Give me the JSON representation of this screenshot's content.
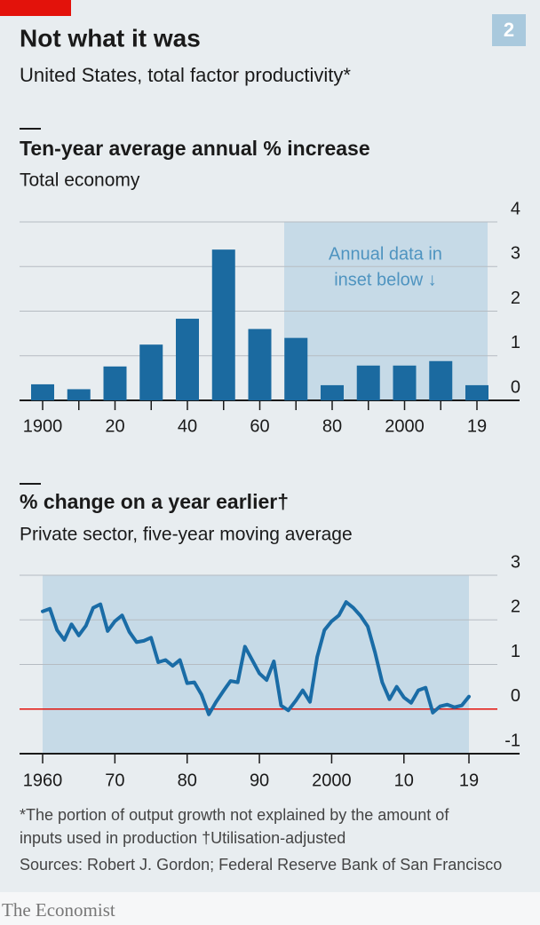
{
  "header": {
    "title": "Not what it was",
    "subtitle": "United States, total factor productivity*",
    "badge": "2"
  },
  "chart_data": [
    {
      "type": "bar",
      "title": "Ten-year average annual % increase",
      "subtitle": "Total economy",
      "categories": [
        "1900",
        null,
        "20",
        null,
        "40",
        null,
        "60",
        null,
        "80",
        null,
        "2000",
        null,
        "19"
      ],
      "values": [
        0.36,
        0.25,
        0.76,
        1.25,
        1.83,
        3.38,
        1.6,
        1.4,
        0.34,
        0.78,
        0.78,
        0.88,
        0.34
      ],
      "color": "#1b6aa0",
      "ylim": [
        0,
        4
      ],
      "yticks": [
        0,
        1,
        2,
        3,
        4
      ],
      "grid": true,
      "annotation": [
        "Annual data in",
        "inset below ↓"
      ]
    },
    {
      "type": "line",
      "title": "% change on a year earlier†",
      "subtitle": "Private sector, five-year moving average",
      "x": [
        1960,
        1961,
        1962,
        1963,
        1964,
        1965,
        1966,
        1967,
        1968,
        1969,
        1970,
        1971,
        1972,
        1973,
        1974,
        1975,
        1976,
        1977,
        1978,
        1979,
        1980,
        1981,
        1982,
        1983,
        1984,
        1985,
        1986,
        1987,
        1988,
        1989,
        1990,
        1991,
        1992,
        1993,
        1994,
        1995,
        1996,
        1997,
        1998,
        1999,
        2000,
        2001,
        2002,
        2003,
        2004,
        2005,
        2006,
        2007,
        2008,
        2009,
        2010,
        2011,
        2012,
        2013,
        2014,
        2015,
        2016,
        2017,
        2018,
        2019
      ],
      "values": [
        2.19,
        2.25,
        1.77,
        1.55,
        1.9,
        1.65,
        1.87,
        2.27,
        2.35,
        1.75,
        1.97,
        2.1,
        1.73,
        1.5,
        1.53,
        1.6,
        1.05,
        1.1,
        0.97,
        1.1,
        0.58,
        0.6,
        0.32,
        -0.12,
        0.16,
        0.4,
        0.63,
        0.6,
        1.4,
        1.1,
        0.8,
        0.65,
        1.07,
        0.08,
        -0.03,
        0.18,
        0.42,
        0.16,
        1.17,
        1.77,
        1.97,
        2.1,
        2.4,
        2.27,
        2.09,
        1.85,
        1.27,
        0.6,
        0.22,
        0.5,
        0.26,
        0.14,
        0.42,
        0.48,
        -0.08,
        0.06,
        0.1,
        0.04,
        0.08,
        0.28
      ],
      "color": "#1a6ca6",
      "xlim": [
        1960,
        2019
      ],
      "xticks": [
        1960,
        {
          "value": 1970,
          "label": "70"
        },
        {
          "value": 1980,
          "label": "80"
        },
        {
          "value": 1990,
          "label": "90"
        },
        2000,
        {
          "value": 2010,
          "label": "10"
        },
        {
          "value": 2019,
          "label": "19"
        }
      ],
      "ylim": [
        -1,
        3
      ],
      "yticks": [
        -1,
        0,
        1,
        2,
        3
      ],
      "grid": true
    }
  ],
  "footnotes": [
    "*The portion of output growth not explained by the amount of",
    "inputs used in production   †Utilisation-adjusted"
  ],
  "source": "Sources: Robert J. Gordon; Federal Reserve Bank of San Francisco",
  "brand": "The Economist"
}
